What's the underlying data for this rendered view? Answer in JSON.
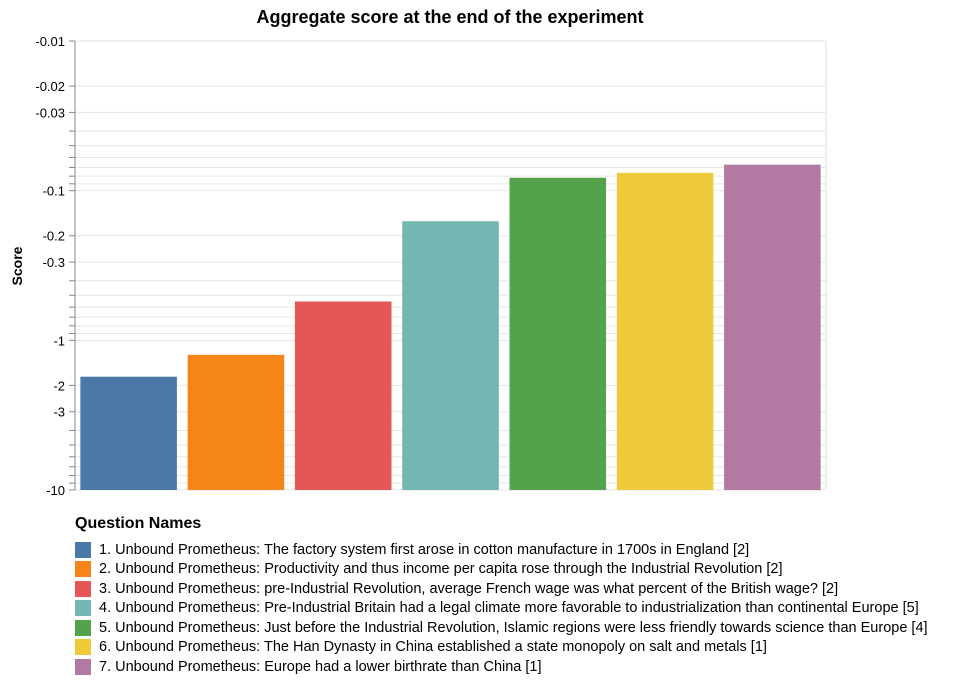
{
  "chart_data": {
    "type": "bar",
    "title": "Aggregate score at the end of the experiment",
    "ylabel": "Score",
    "xlabel": "",
    "y_scale": "log (negative values, magnitude axis)",
    "ylim": [
      -10,
      -0.01
    ],
    "grid": true,
    "legend_position": "bottom",
    "legend_title": "Question Names",
    "y_ticks": [
      "-0.01",
      "-0.02",
      "-0.03",
      "-0.1",
      "-0.2",
      "-0.3",
      "-1",
      "-2",
      "-3",
      "-10"
    ],
    "categories": [
      "1. Unbound Prometheus: The factory system first arose in cotton manufacture in 1700s in England [2]",
      "2. Unbound Prometheus: Productivity and thus income per capita rose through the Industrial Revolution [2]",
      "3. Unbound Prometheus: pre-Industrial Revolution, average French wage was what percent of the British wage? [2]",
      "4. Unbound Prometheus: Pre-Industrial Britain had a legal climate more favorable to industrialization than continental Europe [5]",
      "5. Unbound Prometheus: Just before the Industrial Revolution, Islamic regions were less friendly towards science than Europe [4]",
      "6. Unbound Prometheus: The Han Dynasty in China established a state monopoly on salt and metals [1]",
      "7. Unbound Prometheus: Europe had a lower birthrate than China [1]"
    ],
    "values": [
      -1.75,
      -1.25,
      -0.55,
      -0.16,
      -0.082,
      -0.076,
      -0.067
    ],
    "colors": [
      "#4c78a8",
      "#f58518",
      "#e45756",
      "#72b7b2",
      "#54a24b",
      "#eeca3b",
      "#b279a2"
    ]
  }
}
